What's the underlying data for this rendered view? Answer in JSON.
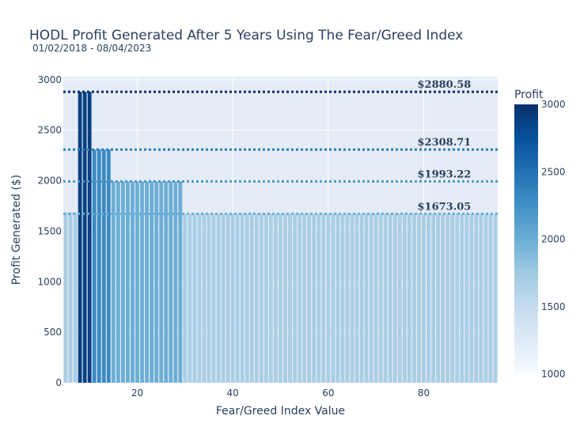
{
  "chart_data": {
    "type": "bar",
    "title": "HODL Profit Generated After 5 Years Using The Fear/Greed Index",
    "subtitle": "01/02/2018 - 08/04/2023",
    "xlabel": "Fear/Greed Index Value",
    "ylabel": "Profit Generated ($)",
    "xlim": [
      4.5,
      95.5
    ],
    "ylim": [
      0,
      3030
    ],
    "x_ticks": [
      20,
      40,
      60,
      80
    ],
    "y_ticks": [
      0,
      500,
      1000,
      1500,
      2000,
      2500,
      3000
    ],
    "x_range": [
      5,
      95
    ],
    "values": [
      1686,
      1686,
      1686,
      2880.58,
      2880.58,
      2880.58,
      2308.71,
      2308.71,
      2308.71,
      2308.71,
      1993.22,
      1993.22,
      1993.22,
      1993.22,
      1993.22,
      1993.22,
      1993.22,
      1993.22,
      1993.22,
      1993.22,
      1993.22,
      1993.22,
      1993.22,
      1993.22,
      1993.22,
      1673.05,
      1673.05,
      1673.05,
      1673.05,
      1673.05,
      1673.05,
      1673.05,
      1673.05,
      1673.05,
      1673.05,
      1673.05,
      1673.05,
      1673.05,
      1673.05,
      1673.05,
      1673.05,
      1673.05,
      1673.05,
      1673.05,
      1673.05,
      1673.05,
      1673.05,
      1673.05,
      1673.05,
      1673.05,
      1673.05,
      1673.05,
      1673.05,
      1673.05,
      1673.05,
      1673.05,
      1673.05,
      1673.05,
      1673.05,
      1673.05,
      1673.05,
      1673.05,
      1673.05,
      1673.05,
      1673.05,
      1673.05,
      1673.05,
      1673.05,
      1673.05,
      1673.05,
      1673.05,
      1673.05,
      1673.05,
      1673.05,
      1673.05,
      1673.05,
      1673.05,
      1673.05,
      1673.05,
      1673.05,
      1673.05,
      1673.05,
      1673.05,
      1673.05,
      1673.05,
      1673.05,
      1673.05,
      1673.05,
      1673.05,
      1673.05,
      1673.05
    ],
    "reference_lines": [
      {
        "value": 2880.58,
        "label": "$2880.58",
        "color": "#08306b"
      },
      {
        "value": 2308.71,
        "label": "$2308.71",
        "color": "#2b7bba"
      },
      {
        "value": 1993.22,
        "label": "$1993.22",
        "color": "#4a98c9"
      },
      {
        "value": 1673.05,
        "label": "$1673.05",
        "color": "#6aaed6"
      }
    ],
    "colorbar": {
      "title": "Profit",
      "range": [
        1000,
        3000
      ],
      "ticks": [
        1000,
        1500,
        2000,
        2500,
        3000
      ],
      "colorscale": [
        "#f7fbff",
        "#deebf7",
        "#c6dbef",
        "#9ecae1",
        "#6baed6",
        "#4292c6",
        "#2171b5",
        "#08519c",
        "#08306b"
      ]
    },
    "plot_background": "#e5ecf6",
    "grid": true,
    "legend": "colorbar right"
  }
}
